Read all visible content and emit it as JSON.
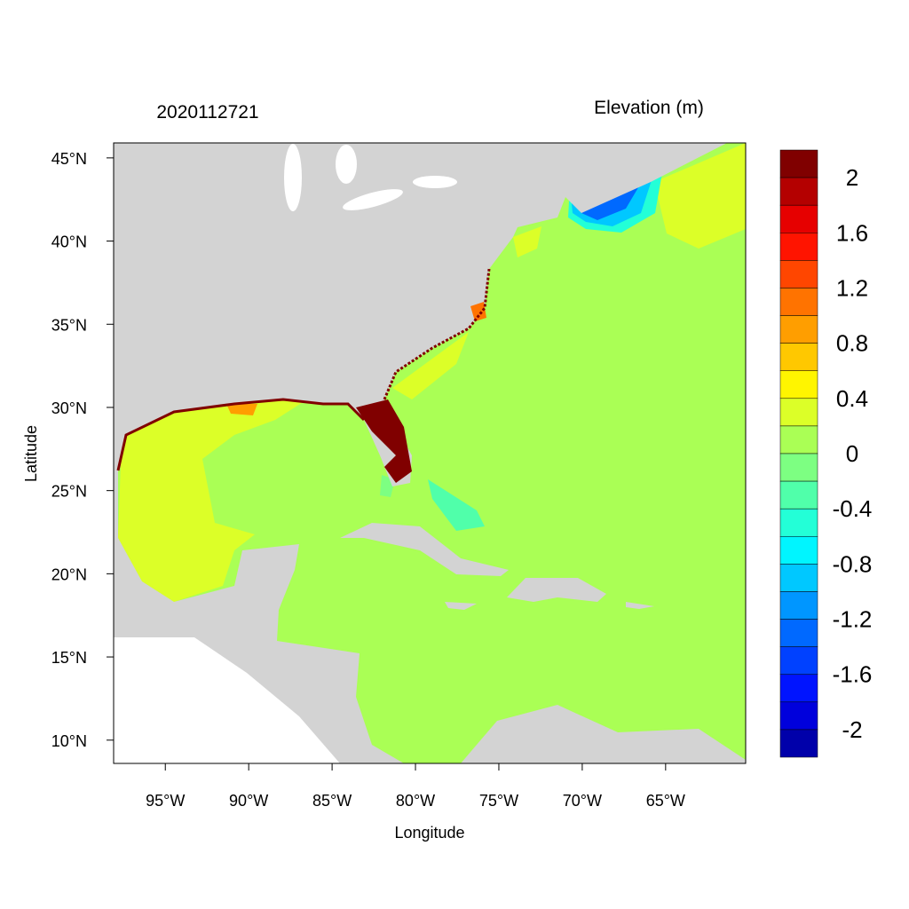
{
  "header": {
    "timestamp": "2020112721",
    "variable_title": "Elevation (m)"
  },
  "axes": {
    "xlabel": "Longitude",
    "ylabel": "Latitude",
    "x_ticks": [
      "95°W",
      "90°W",
      "85°W",
      "80°W",
      "75°W",
      "70°W",
      "65°W"
    ],
    "x_tick_values": [
      -95,
      -90,
      -85,
      -80,
      -75,
      -70,
      -65
    ],
    "y_ticks": [
      "45°N",
      "40°N",
      "35°N",
      "30°N",
      "25°N",
      "20°N",
      "15°N",
      "10°N"
    ],
    "y_tick_values": [
      45,
      40,
      35,
      30,
      25,
      20,
      15,
      10
    ],
    "lon_range": [
      -98.1,
      -60.2
    ],
    "lat_range": [
      8.6,
      45.9
    ]
  },
  "colorbar": {
    "labels": [
      "2",
      "1.6",
      "1.2",
      "0.8",
      "0.4",
      "0",
      "-0.4",
      "-0.8",
      "-1.2",
      "-1.6",
      "-2"
    ],
    "label_values": [
      2,
      1.6,
      1.2,
      0.8,
      0.4,
      0,
      -0.4,
      -0.8,
      -1.2,
      -1.6,
      -2
    ],
    "range": [
      -2.2,
      2.2
    ],
    "step": 0.2,
    "colors_top_to_bottom": [
      "#800000",
      "#B40000",
      "#E60000",
      "#FF1400",
      "#FF4600",
      "#FF7300",
      "#FF9E00",
      "#FFC800",
      "#FFF500",
      "#DCFF28",
      "#AAFF55",
      "#7DFF82",
      "#50FFAA",
      "#23FFD7",
      "#00F5FF",
      "#00C8FF",
      "#0096FF",
      "#0069FF",
      "#0041FF",
      "#0014FF",
      "#0000DC",
      "#0000AA"
    ]
  },
  "map_colors": {
    "land": "#D3D3D3",
    "lakes_and_dry": "#FFFFFF",
    "background_ocean": "#AAFF55"
  }
}
